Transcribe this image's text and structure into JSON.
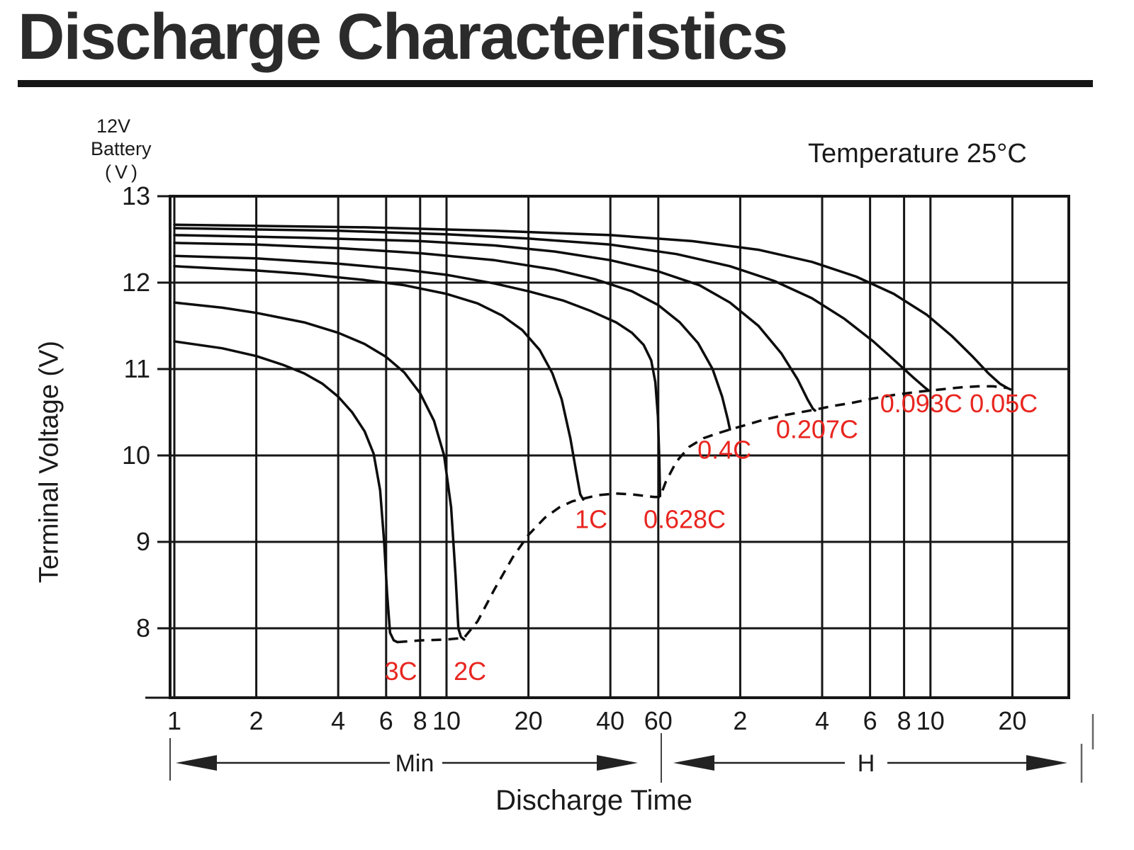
{
  "title": "Discharge Characteristics",
  "annotation_temperature": "Temperature 25°C",
  "y_axis_unit": {
    "line1": "12V",
    "line2": "Battery",
    "line3": "(V)"
  },
  "xlabel": "Discharge Time",
  "colors": {
    "ink": "#161616",
    "curve": "#0d0d0d",
    "red": "#e8251f",
    "title": "#2b2b2b"
  },
  "chart_data": {
    "type": "line",
    "title": "Discharge Characteristics",
    "subtitle": "Temperature 25°C",
    "x_axis": {
      "scale": "log",
      "label": "Discharge Time",
      "unit_labels": {
        "minutes": "Min",
        "hours": "H"
      },
      "minute_ticks": [
        {
          "t": 1,
          "label": "1"
        },
        {
          "t": 2,
          "label": "2"
        },
        {
          "t": 4,
          "label": "4"
        },
        {
          "t": 6,
          "label": "6"
        },
        {
          "t": 8,
          "label": "8"
        },
        {
          "t": 10,
          "label": "10"
        },
        {
          "t": 20,
          "label": "20"
        },
        {
          "t": 40,
          "label": "40"
        },
        {
          "t": 60,
          "label": "60"
        }
      ],
      "hour_ticks": [
        {
          "t": 120,
          "label": "2"
        },
        {
          "t": 240,
          "label": "4"
        },
        {
          "t": 360,
          "label": "6"
        },
        {
          "t": 480,
          "label": "8"
        },
        {
          "t": 600,
          "label": "10"
        },
        {
          "t": 1200,
          "label": "20"
        }
      ],
      "range_minutes": [
        1,
        1340
      ]
    },
    "y_axis": {
      "label": "Terminal Voltage (V)",
      "unit": "V",
      "ticks": [
        13,
        12,
        11,
        10,
        9,
        8
      ],
      "range": [
        7.2,
        13
      ]
    },
    "series": [
      {
        "name": "3C",
        "points": [
          [
            1,
            11.32
          ],
          [
            1.5,
            11.24
          ],
          [
            2,
            11.15
          ],
          [
            2.5,
            11.05
          ],
          [
            3,
            10.95
          ],
          [
            3.5,
            10.83
          ],
          [
            4,
            10.68
          ],
          [
            4.5,
            10.5
          ],
          [
            5,
            10.28
          ],
          [
            5.4,
            10.02
          ],
          [
            5.7,
            9.6
          ],
          [
            5.9,
            9.0
          ],
          [
            6.05,
            8.4
          ],
          [
            6.2,
            7.95
          ],
          [
            6.4,
            7.86
          ],
          [
            6.6,
            7.84
          ]
        ]
      },
      {
        "name": "2C",
        "points": [
          [
            1,
            11.77
          ],
          [
            1.5,
            11.71
          ],
          [
            2,
            11.65
          ],
          [
            3,
            11.54
          ],
          [
            4,
            11.42
          ],
          [
            5,
            11.29
          ],
          [
            6,
            11.14
          ],
          [
            7,
            10.96
          ],
          [
            8,
            10.72
          ],
          [
            9,
            10.4
          ],
          [
            9.8,
            10.0
          ],
          [
            10.4,
            9.4
          ],
          [
            10.8,
            8.6
          ],
          [
            11.05,
            8.0
          ],
          [
            11.3,
            7.9
          ],
          [
            11.6,
            7.87
          ]
        ]
      },
      {
        "name": "1C",
        "points": [
          [
            1,
            12.19
          ],
          [
            2,
            12.14
          ],
          [
            3,
            12.1
          ],
          [
            5,
            12.03
          ],
          [
            7,
            11.97
          ],
          [
            10,
            11.87
          ],
          [
            13,
            11.76
          ],
          [
            16,
            11.62
          ],
          [
            19,
            11.45
          ],
          [
            22,
            11.22
          ],
          [
            24.5,
            10.95
          ],
          [
            26.5,
            10.65
          ],
          [
            28.5,
            10.2
          ],
          [
            30,
            9.8
          ],
          [
            31,
            9.55
          ],
          [
            31.8,
            9.49
          ]
        ]
      },
      {
        "name": "0.628C",
        "points": [
          [
            1,
            12.31
          ],
          [
            2,
            12.28
          ],
          [
            4,
            12.22
          ],
          [
            7,
            12.15
          ],
          [
            10,
            12.09
          ],
          [
            15,
            11.99
          ],
          [
            20,
            11.9
          ],
          [
            27,
            11.79
          ],
          [
            34,
            11.67
          ],
          [
            42,
            11.54
          ],
          [
            48,
            11.42
          ],
          [
            53,
            11.28
          ],
          [
            56.5,
            11.1
          ],
          [
            58.5,
            10.85
          ],
          [
            59.8,
            10.45
          ],
          [
            60.5,
            9.95
          ],
          [
            60.9,
            9.53
          ]
        ]
      },
      {
        "name": "0.4C",
        "points": [
          [
            1,
            12.46
          ],
          [
            2,
            12.44
          ],
          [
            4,
            12.4
          ],
          [
            8,
            12.34
          ],
          [
            15,
            12.26
          ],
          [
            25,
            12.15
          ],
          [
            35,
            12.04
          ],
          [
            48,
            11.9
          ],
          [
            60,
            11.74
          ],
          [
            72,
            11.54
          ],
          [
            84,
            11.3
          ],
          [
            95,
            11.0
          ],
          [
            103,
            10.68
          ],
          [
            108,
            10.42
          ],
          [
            110,
            10.3
          ]
        ]
      },
      {
        "name": "0.207C",
        "points": [
          [
            1,
            12.55
          ],
          [
            3,
            12.52
          ],
          [
            8,
            12.48
          ],
          [
            15,
            12.43
          ],
          [
            25,
            12.36
          ],
          [
            40,
            12.26
          ],
          [
            60,
            12.13
          ],
          [
            85,
            11.97
          ],
          [
            110,
            11.77
          ],
          [
            140,
            11.5
          ],
          [
            170,
            11.18
          ],
          [
            195,
            10.88
          ],
          [
            212,
            10.65
          ],
          [
            222,
            10.54
          ],
          [
            226,
            10.52
          ]
        ]
      },
      {
        "name": "0.093C",
        "points": [
          [
            1,
            12.63
          ],
          [
            4,
            12.6
          ],
          [
            10,
            12.56
          ],
          [
            20,
            12.51
          ],
          [
            40,
            12.44
          ],
          [
            70,
            12.33
          ],
          [
            110,
            12.19
          ],
          [
            160,
            12.02
          ],
          [
            220,
            11.82
          ],
          [
            290,
            11.58
          ],
          [
            370,
            11.32
          ],
          [
            450,
            11.08
          ],
          [
            520,
            10.9
          ],
          [
            570,
            10.79
          ],
          [
            592,
            10.75
          ]
        ]
      },
      {
        "name": "0.05C",
        "points": [
          [
            1,
            12.67
          ],
          [
            5,
            12.64
          ],
          [
            15,
            12.6
          ],
          [
            40,
            12.55
          ],
          [
            80,
            12.48
          ],
          [
            140,
            12.38
          ],
          [
            220,
            12.24
          ],
          [
            320,
            12.07
          ],
          [
            440,
            11.87
          ],
          [
            580,
            11.63
          ],
          [
            720,
            11.38
          ],
          [
            860,
            11.14
          ],
          [
            980,
            10.95
          ],
          [
            1080,
            10.83
          ],
          [
            1150,
            10.78
          ]
        ]
      }
    ],
    "cutoff_line": {
      "name": "discharge-end-voltage",
      "style": "dashed",
      "points": [
        [
          6.6,
          7.84
        ],
        [
          8,
          7.86
        ],
        [
          10,
          7.87
        ],
        [
          11.6,
          7.89
        ],
        [
          13,
          8.08
        ],
        [
          15,
          8.45
        ],
        [
          17.5,
          8.82
        ],
        [
          20,
          9.08
        ],
        [
          23,
          9.28
        ],
        [
          26,
          9.4
        ],
        [
          29,
          9.47
        ],
        [
          31.8,
          9.5
        ],
        [
          36,
          9.54
        ],
        [
          42,
          9.56
        ],
        [
          48,
          9.55
        ],
        [
          54,
          9.53
        ],
        [
          58,
          9.52
        ],
        [
          60.9,
          9.52
        ],
        [
          64,
          9.7
        ],
        [
          70,
          9.93
        ],
        [
          78,
          10.1
        ],
        [
          88,
          10.2
        ],
        [
          100,
          10.26
        ],
        [
          110,
          10.3
        ],
        [
          125,
          10.35
        ],
        [
          145,
          10.41
        ],
        [
          170,
          10.46
        ],
        [
          200,
          10.5
        ],
        [
          226,
          10.53
        ],
        [
          260,
          10.57
        ],
        [
          310,
          10.61
        ],
        [
          370,
          10.66
        ],
        [
          440,
          10.7
        ],
        [
          520,
          10.73
        ],
        [
          592,
          10.75
        ],
        [
          680,
          10.77
        ],
        [
          790,
          10.79
        ],
        [
          900,
          10.8
        ],
        [
          1020,
          10.8
        ],
        [
          1150,
          10.78
        ],
        [
          1190,
          10.76
        ]
      ]
    },
    "series_labels": [
      {
        "text": "3C",
        "t": 6.8,
        "v": 7.5
      },
      {
        "text": "2C",
        "t": 12.2,
        "v": 7.5
      },
      {
        "text": "1C",
        "t": 34,
        "v": 9.26
      },
      {
        "text": "0.628C",
        "t": 75,
        "v": 9.26
      },
      {
        "text": "0.4C",
        "t": 105,
        "v": 10.06
      },
      {
        "text": "0.207C",
        "t": 230,
        "v": 10.3
      },
      {
        "text": "0.093C",
        "t": 555,
        "v": 10.6
      },
      {
        "text": "0.05C",
        "t": 1115,
        "v": 10.6
      }
    ]
  }
}
